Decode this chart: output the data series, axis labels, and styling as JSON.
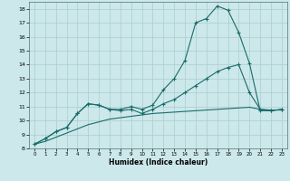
{
  "xlabel": "Humidex (Indice chaleur)",
  "bg_color": "#cce8ea",
  "grid_color": "#aacccc",
  "line_color": "#1a6b6b",
  "xlim": [
    -0.5,
    23.5
  ],
  "ylim": [
    8,
    18.5
  ],
  "xticks": [
    0,
    1,
    2,
    3,
    4,
    5,
    6,
    7,
    8,
    9,
    10,
    11,
    12,
    13,
    14,
    15,
    16,
    17,
    18,
    19,
    20,
    21,
    22,
    23
  ],
  "yticks": [
    8,
    9,
    10,
    11,
    12,
    13,
    14,
    15,
    16,
    17,
    18
  ],
  "line1_x": [
    0,
    1,
    2,
    3,
    4,
    5,
    6,
    7,
    8,
    9,
    10,
    11,
    12,
    13,
    14,
    15,
    16,
    17,
    18,
    19,
    20,
    21,
    22,
    23
  ],
  "line1_y": [
    8.3,
    8.7,
    9.2,
    9.5,
    10.5,
    11.2,
    11.1,
    10.8,
    10.8,
    11.0,
    10.8,
    11.1,
    12.2,
    13.0,
    14.3,
    17.0,
    17.3,
    18.2,
    17.9,
    16.3,
    14.1,
    10.7,
    10.7,
    10.8
  ],
  "line2_x": [
    0,
    1,
    2,
    3,
    4,
    5,
    6,
    7,
    8,
    9,
    10,
    11,
    12,
    13,
    14,
    15,
    16,
    17,
    18,
    19,
    20,
    21,
    22,
    23
  ],
  "line2_y": [
    8.3,
    8.7,
    9.2,
    9.5,
    10.5,
    11.2,
    11.1,
    10.8,
    10.7,
    10.8,
    10.5,
    10.8,
    11.2,
    11.5,
    12.0,
    12.5,
    13.0,
    13.5,
    13.8,
    14.0,
    12.0,
    10.8,
    10.7,
    10.8
  ],
  "line3_x": [
    0,
    1,
    2,
    3,
    4,
    5,
    6,
    7,
    8,
    9,
    10,
    11,
    12,
    13,
    14,
    15,
    16,
    17,
    18,
    19,
    20,
    21,
    22,
    23
  ],
  "line3_y": [
    8.3,
    8.5,
    8.8,
    9.1,
    9.4,
    9.7,
    9.9,
    10.1,
    10.2,
    10.3,
    10.4,
    10.5,
    10.55,
    10.6,
    10.65,
    10.7,
    10.75,
    10.8,
    10.85,
    10.9,
    10.95,
    10.8,
    10.75,
    10.75
  ]
}
